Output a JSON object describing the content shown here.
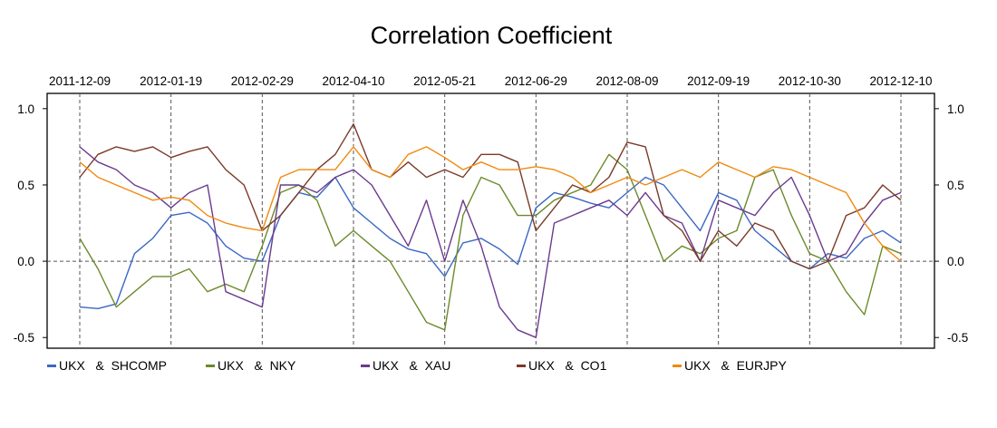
{
  "title": "Correlation Coefficient",
  "chart_data": {
    "type": "line",
    "title": "Correlation Coefficient",
    "xlabel": "",
    "ylabel": "",
    "x_tick_labels": [
      "2011-12-09",
      "2012-01-19",
      "2012-02-29",
      "2012-04-10",
      "2012-05-21",
      "2012-06-29",
      "2012-08-09",
      "2012-09-19",
      "2012-10-30",
      "2012-12-10"
    ],
    "y_ticks": [
      -0.5,
      0.0,
      0.5,
      1.0
    ],
    "y_tick_labels": [
      "-0.5",
      "0.0",
      "0.5",
      "1.0"
    ],
    "ylim": [
      -0.57,
      1.1
    ],
    "xlim": [
      0,
      9
    ],
    "grid": "dashed vertical at date ticks, dashed horizontal at 0",
    "legend_position": "bottom",
    "series": [
      {
        "name": "UKX  &  SHCOMP",
        "color": "#3b67c4",
        "x": [
          0,
          0.2,
          0.4,
          0.6,
          0.8,
          1,
          1.2,
          1.4,
          1.6,
          1.8,
          2,
          2.2,
          2.4,
          2.6,
          2.8,
          3,
          3.2,
          3.4,
          3.6,
          3.8,
          4,
          4.2,
          4.4,
          4.6,
          4.8,
          5,
          5.2,
          5.4,
          5.6,
          5.8,
          6,
          6.2,
          6.4,
          6.6,
          6.8,
          7,
          7.2,
          7.4,
          7.6,
          7.8,
          8,
          8.2,
          8.4,
          8.6,
          8.8,
          9
        ],
        "values": [
          -0.3,
          -0.31,
          -0.28,
          0.05,
          0.15,
          0.3,
          0.32,
          0.25,
          0.1,
          0.02,
          0,
          0.3,
          0.45,
          0.42,
          0.55,
          0.35,
          0.25,
          0.15,
          0.08,
          0.05,
          -0.1,
          0.12,
          0.15,
          0.08,
          -0.02,
          0.35,
          0.45,
          0.42,
          0.38,
          0.35,
          0.45,
          0.55,
          0.5,
          0.35,
          0.2,
          0.45,
          0.4,
          0.2,
          0.1,
          0.0,
          -0.05,
          0.05,
          0.02,
          0.15,
          0.2,
          0.12
        ]
      },
      {
        "name": "UKX  &  NKY",
        "color": "#6b8a2a",
        "x": [
          0,
          0.2,
          0.4,
          0.6,
          0.8,
          1,
          1.2,
          1.4,
          1.6,
          1.8,
          2,
          2.2,
          2.4,
          2.6,
          2.8,
          3,
          3.2,
          3.4,
          3.6,
          3.8,
          4,
          4.2,
          4.4,
          4.6,
          4.8,
          5,
          5.2,
          5.4,
          5.6,
          5.8,
          6,
          6.2,
          6.4,
          6.6,
          6.8,
          7,
          7.2,
          7.4,
          7.6,
          7.8,
          8,
          8.2,
          8.4,
          8.6,
          8.8,
          9
        ],
        "values": [
          0.15,
          -0.05,
          -0.3,
          -0.2,
          -0.1,
          -0.1,
          -0.05,
          -0.2,
          -0.15,
          -0.2,
          0.1,
          0.45,
          0.5,
          0.4,
          0.1,
          0.2,
          0.1,
          0.0,
          -0.2,
          -0.4,
          -0.45,
          0.3,
          0.55,
          0.5,
          0.3,
          0.3,
          0.4,
          0.45,
          0.5,
          0.7,
          0.6,
          0.3,
          0.0,
          0.1,
          0.05,
          0.15,
          0.2,
          0.55,
          0.6,
          0.3,
          0.05,
          0.0,
          -0.2,
          -0.35,
          0.1,
          0.05
        ]
      },
      {
        "name": "UKX  &  XAU",
        "color": "#6b3a8e",
        "x": [
          0,
          0.2,
          0.4,
          0.6,
          0.8,
          1,
          1.2,
          1.4,
          1.6,
          1.8,
          2,
          2.2,
          2.4,
          2.6,
          2.8,
          3,
          3.2,
          3.4,
          3.6,
          3.8,
          4,
          4.2,
          4.4,
          4.6,
          4.8,
          5,
          5.2,
          5.4,
          5.6,
          5.8,
          6,
          6.2,
          6.4,
          6.6,
          6.8,
          7,
          7.2,
          7.4,
          7.6,
          7.8,
          8,
          8.2,
          8.4,
          8.6,
          8.8,
          9
        ],
        "values": [
          0.75,
          0.65,
          0.6,
          0.5,
          0.45,
          0.35,
          0.45,
          0.5,
          -0.2,
          -0.25,
          -0.3,
          0.5,
          0.5,
          0.45,
          0.55,
          0.6,
          0.5,
          0.3,
          0.1,
          0.4,
          0.0,
          0.4,
          0.1,
          -0.3,
          -0.45,
          -0.5,
          0.25,
          0.3,
          0.35,
          0.4,
          0.3,
          0.45,
          0.3,
          0.25,
          0.0,
          0.4,
          0.35,
          0.3,
          0.45,
          0.55,
          0.3,
          0.0,
          0.05,
          0.25,
          0.4,
          0.45
        ]
      },
      {
        "name": "UKX  &  CO1",
        "color": "#7b3a28",
        "x": [
          0,
          0.2,
          0.4,
          0.6,
          0.8,
          1,
          1.2,
          1.4,
          1.6,
          1.8,
          2,
          2.2,
          2.4,
          2.6,
          2.8,
          3,
          3.2,
          3.4,
          3.6,
          3.8,
          4,
          4.2,
          4.4,
          4.6,
          4.8,
          5,
          5.2,
          5.4,
          5.6,
          5.8,
          6,
          6.2,
          6.4,
          6.6,
          6.8,
          7,
          7.2,
          7.4,
          7.6,
          7.8,
          8,
          8.2,
          8.4,
          8.6,
          8.8,
          9
        ],
        "values": [
          0.55,
          0.7,
          0.75,
          0.72,
          0.75,
          0.68,
          0.72,
          0.75,
          0.6,
          0.5,
          0.2,
          0.3,
          0.45,
          0.6,
          0.7,
          0.9,
          0.6,
          0.55,
          0.65,
          0.55,
          0.6,
          0.55,
          0.7,
          0.7,
          0.65,
          0.2,
          0.35,
          0.5,
          0.45,
          0.55,
          0.78,
          0.75,
          0.3,
          0.2,
          0.0,
          0.2,
          0.1,
          0.25,
          0.2,
          0.0,
          -0.05,
          0.0,
          0.3,
          0.35,
          0.5,
          0.4
        ]
      },
      {
        "name": "UKX  &  EURJPY",
        "color": "#f08a10",
        "x": [
          0,
          0.2,
          0.4,
          0.6,
          0.8,
          1,
          1.2,
          1.4,
          1.6,
          1.8,
          2,
          2.2,
          2.4,
          2.6,
          2.8,
          3,
          3.2,
          3.4,
          3.6,
          3.8,
          4,
          4.2,
          4.4,
          4.6,
          4.8,
          5,
          5.2,
          5.4,
          5.6,
          5.8,
          6,
          6.2,
          6.4,
          6.6,
          6.8,
          7,
          7.2,
          7.4,
          7.6,
          7.8,
          8,
          8.2,
          8.4,
          8.6,
          8.8,
          9
        ],
        "values": [
          0.65,
          0.55,
          0.5,
          0.45,
          0.4,
          0.42,
          0.4,
          0.3,
          0.25,
          0.22,
          0.2,
          0.55,
          0.6,
          0.6,
          0.6,
          0.75,
          0.6,
          0.55,
          0.7,
          0.75,
          0.68,
          0.6,
          0.65,
          0.6,
          0.6,
          0.62,
          0.6,
          0.55,
          0.45,
          0.5,
          0.55,
          0.5,
          0.55,
          0.6,
          0.55,
          0.65,
          0.6,
          0.55,
          0.62,
          0.6,
          0.55,
          0.5,
          0.45,
          0.25,
          0.1,
          0.0
        ]
      }
    ]
  },
  "legend": {
    "items": [
      {
        "label": "UKX   &  SHCOMP",
        "color": "#3b67c4"
      },
      {
        "label": "UKX   &  NKY",
        "color": "#6b8a2a"
      },
      {
        "label": "UKX   &  XAU",
        "color": "#6b3a8e"
      },
      {
        "label": "UKX   &  CO1",
        "color": "#7b3a28"
      },
      {
        "label": "UKX   &  EURJPY",
        "color": "#f08a10"
      }
    ]
  }
}
